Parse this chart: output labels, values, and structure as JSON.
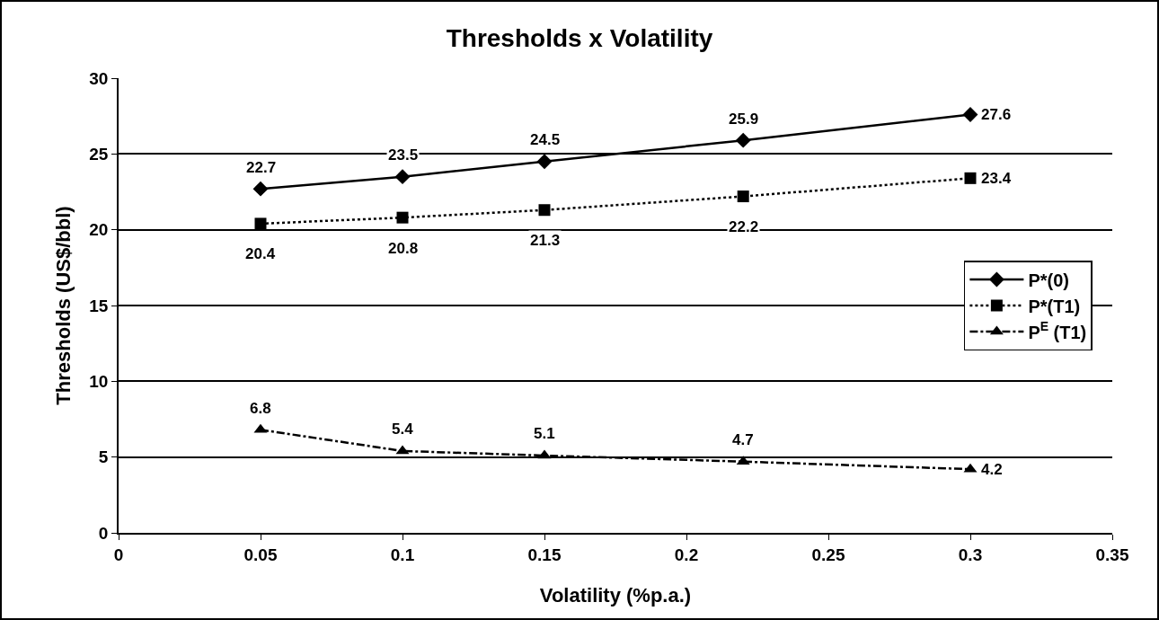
{
  "chart_data": {
    "type": "line",
    "title": "Thresholds x Volatility",
    "xlabel": "Volatility (%p.a.)",
    "ylabel": "Thresholds (US$/bbl)",
    "x": [
      0.05,
      0.1,
      0.15,
      0.22,
      0.3
    ],
    "series": [
      {
        "name": "P*(0)",
        "color": "#000000",
        "values": [
          22.7,
          23.5,
          24.5,
          25.9,
          27.6
        ],
        "marker": "diamond",
        "line_style": "solid"
      },
      {
        "name": "P*(T1)",
        "color": "#000000",
        "values": [
          20.4,
          20.8,
          21.3,
          22.2,
          23.4
        ],
        "marker": "square",
        "line_style": "dotted"
      },
      {
        "name": "P$^{E}$ (T1)",
        "color": "#000000",
        "values": [
          6.8,
          5.4,
          5.1,
          4.7,
          4.2
        ],
        "marker": "triangle",
        "line_style": "dashdot"
      }
    ],
    "xlim": [
      0,
      0.35
    ],
    "xticks": [
      0,
      0.05,
      0.1,
      0.15,
      0.2,
      0.25,
      0.3,
      0.35
    ],
    "ylim": [
      0,
      30
    ],
    "yticks": [
      0,
      5,
      10,
      15,
      20,
      25,
      30
    ],
    "grid": "y",
    "legend": "right",
    "data_labels": true
  }
}
